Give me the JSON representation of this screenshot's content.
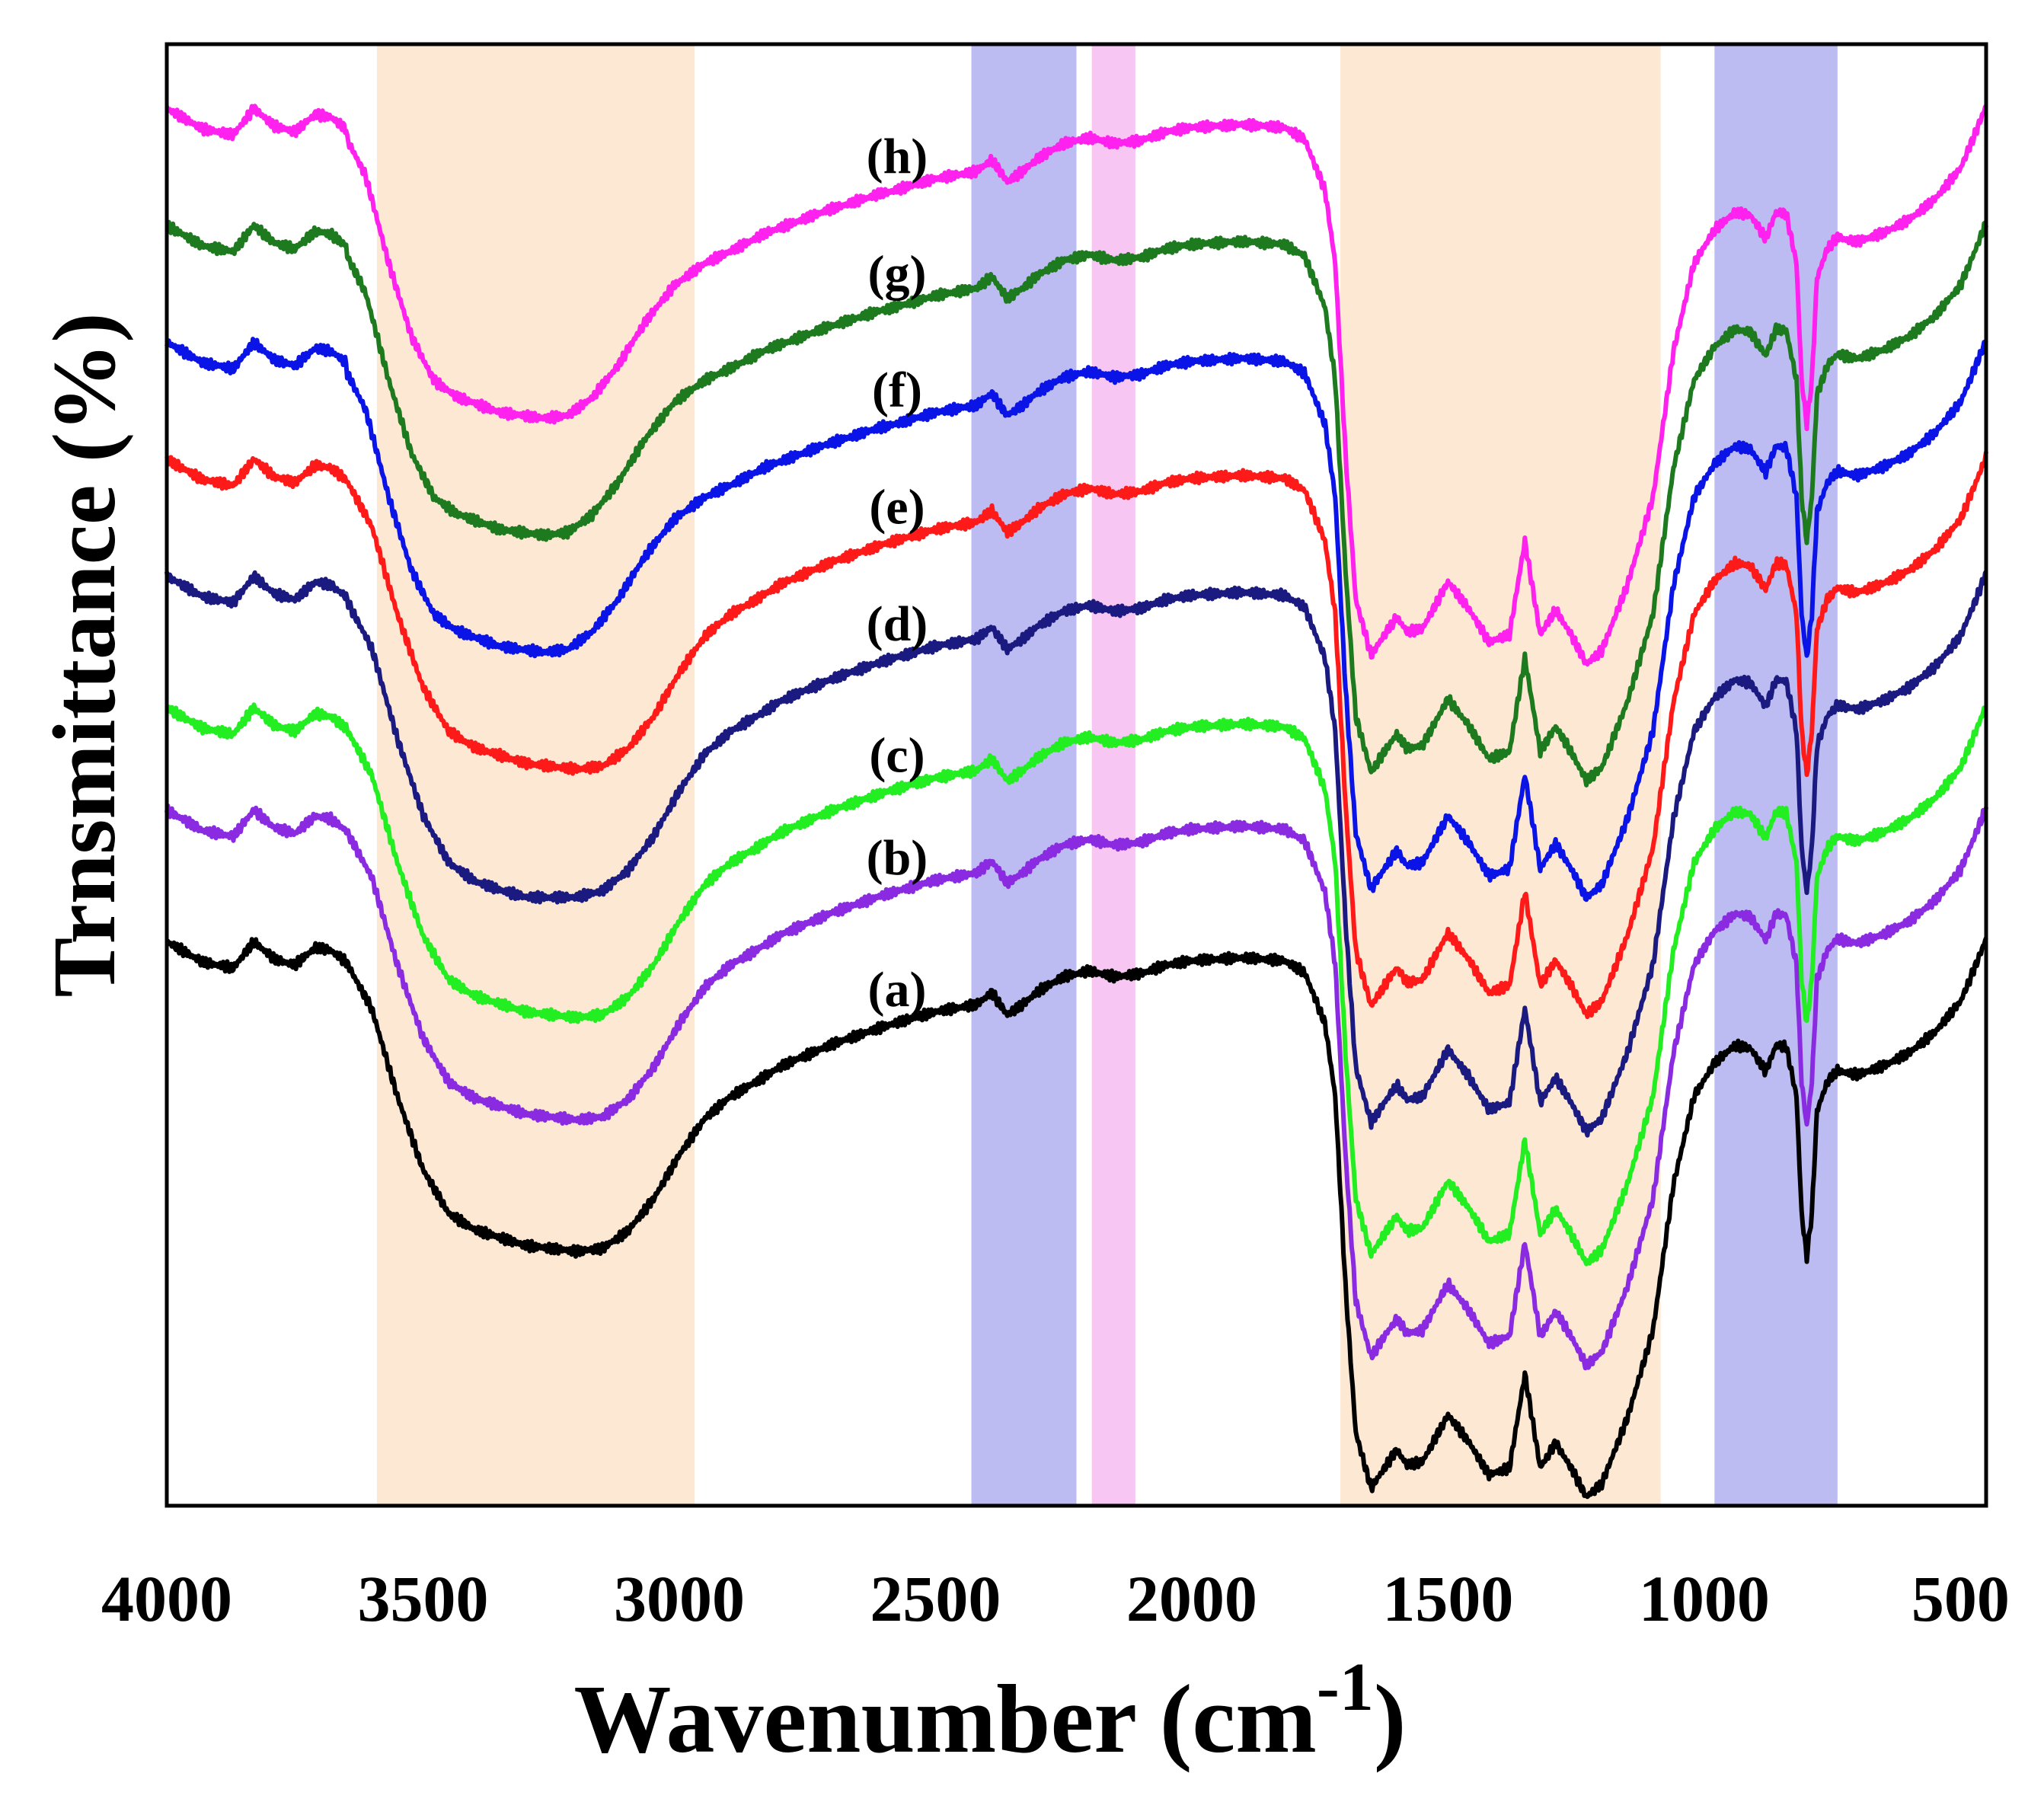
{
  "chart_data": {
    "type": "line",
    "title": "",
    "xlabel": "Wavenumber (cm",
    "xlabel_superscript": "-1",
    "xlabel_suffix": ")",
    "ylabel": "Trnsmittance (%)",
    "xlim": [
      4000,
      450
    ],
    "ylim": [
      0,
      100
    ],
    "x_reversed": true,
    "grid": false,
    "xticks": [
      4000,
      3500,
      3000,
      2500,
      2000,
      1500,
      1000,
      500
    ],
    "highlight_bands": [
      {
        "from": 3590,
        "to": 2970,
        "color": "#fde9d3"
      },
      {
        "from": 2430,
        "to": 2225,
        "color": "#bcbcf2"
      },
      {
        "from": 2195,
        "to": 2110,
        "color": "#f7c6f2"
      },
      {
        "from": 1710,
        "to": 1085,
        "color": "#fde9d3"
      },
      {
        "from": 980,
        "to": 740,
        "color": "#bcbcf2"
      }
    ],
    "series": [
      {
        "name": "(a)",
        "color": "#000000",
        "offset": 0,
        "shape": "normal"
      },
      {
        "name": "(b)",
        "color": "#8a2be2",
        "offset": 9,
        "shape": "normal"
      },
      {
        "name": "(c)",
        "color": "#22ee22",
        "offset": 16,
        "shape": "normal"
      },
      {
        "name": "(d)",
        "color": "#1a1a80",
        "offset": 25,
        "shape": "broad"
      },
      {
        "name": "(e)",
        "color": "#ff1a1a",
        "offset": 33,
        "shape": "normal"
      },
      {
        "name": "(f)",
        "color": "#0a14e6",
        "offset": 41,
        "shape": "early"
      },
      {
        "name": "(g)",
        "color": "#1e7a1e",
        "offset": 49,
        "shape": "early"
      },
      {
        "name": "(h)",
        "color": "#ff22ee",
        "offset": 57,
        "shape": "early"
      }
    ],
    "series_label_x": 2575,
    "base_curve": [
      [
        4000,
        38.6
      ],
      [
        3930,
        37.2
      ],
      [
        3870,
        36.8
      ],
      [
        3830,
        38.6
      ],
      [
        3790,
        37.4
      ],
      [
        3750,
        37.0
      ],
      [
        3710,
        38.2
      ],
      [
        3680,
        38.0
      ],
      [
        3650,
        37.2
      ],
      [
        3600,
        34
      ],
      [
        3550,
        28
      ],
      [
        3500,
        23
      ],
      [
        3450,
        20
      ],
      [
        3400,
        18.9
      ],
      [
        3300,
        17.8
      ],
      [
        3250,
        17.6
      ],
      [
        3200,
        17.4
      ],
      [
        3150,
        17.6
      ],
      [
        3100,
        18.8
      ],
      [
        3050,
        21
      ],
      [
        3000,
        24
      ],
      [
        2950,
        26.5
      ],
      [
        2900,
        28.0
      ],
      [
        2850,
        29.0
      ],
      [
        2800,
        30.1
      ],
      [
        2700,
        31.6
      ],
      [
        2600,
        32.8
      ],
      [
        2500,
        33.8
      ],
      [
        2420,
        34.3
      ],
      [
        2390,
        35.1
      ],
      [
        2360,
        33.6
      ],
      [
        2330,
        34.3
      ],
      [
        2300,
        35.2
      ],
      [
        2250,
        36.2
      ],
      [
        2200,
        36.6
      ],
      [
        2150,
        36.2
      ],
      [
        2100,
        36.4
      ],
      [
        2050,
        37.0
      ],
      [
        2000,
        37.3
      ],
      [
        1900,
        37.5
      ],
      [
        1820,
        37.3
      ],
      [
        1780,
        36.5
      ],
      [
        1740,
        33
      ],
      [
        1720,
        28
      ],
      [
        1700,
        15
      ],
      [
        1680,
        5
      ],
      [
        1650,
        1.2
      ],
      [
        1620,
        2.8
      ],
      [
        1600,
        3.8
      ],
      [
        1580,
        2.8
      ],
      [
        1550,
        3.0
      ],
      [
        1500,
        6.2
      ],
      [
        1460,
        4.4
      ],
      [
        1420,
        2.1
      ],
      [
        1380,
        2.6
      ],
      [
        1350,
        9.0
      ],
      [
        1320,
        2.6
      ],
      [
        1290,
        4.3
      ],
      [
        1260,
        2.6
      ],
      [
        1230,
        0.6
      ],
      [
        1200,
        1.5
      ],
      [
        1150,
        6
      ],
      [
        1100,
        12
      ],
      [
        1060,
        22
      ],
      [
        1020,
        28.0
      ],
      [
        980,
        30.3
      ],
      [
        940,
        31.5
      ],
      [
        910,
        31.3
      ],
      [
        895,
        30.5
      ],
      [
        880,
        29.7
      ],
      [
        860,
        31.5
      ],
      [
        840,
        31.4
      ],
      [
        820,
        28
      ],
      [
        810,
        20
      ],
      [
        800,
        17
      ],
      [
        790,
        20
      ],
      [
        780,
        27
      ],
      [
        760,
        29.0
      ],
      [
        740,
        29.8
      ],
      [
        720,
        29.6
      ],
      [
        700,
        29.5
      ],
      [
        650,
        30.1
      ],
      [
        600,
        31.0
      ],
      [
        550,
        32.4
      ],
      [
        500,
        34.5
      ],
      [
        470,
        37.0
      ],
      [
        450,
        38.8
      ]
    ]
  }
}
